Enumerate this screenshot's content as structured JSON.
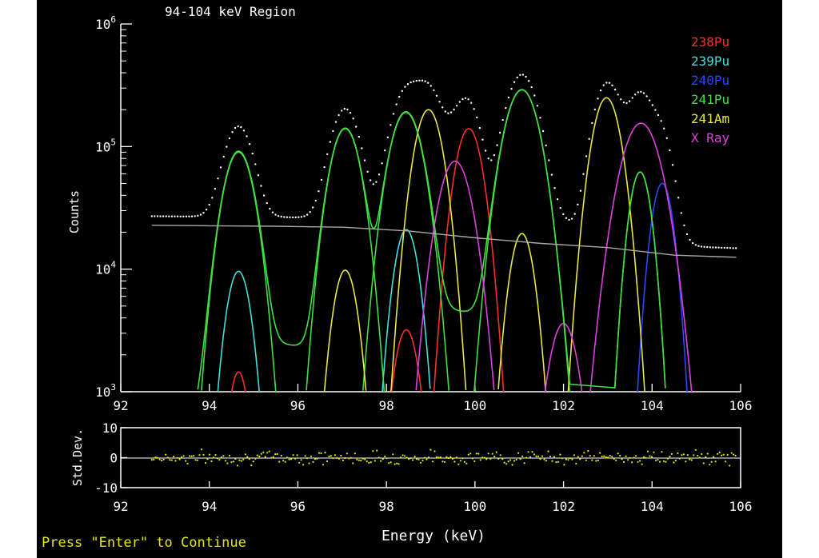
{
  "title": "94-104 keV Region",
  "prompt": "Press \"Enter\" to Continue",
  "colors": {
    "background": "#000000",
    "axis": "#ffffff",
    "prompt": "#e6e600",
    "baseline": "#a8a8a8",
    "data_points": "#ffffff",
    "residuals": "#e6e600"
  },
  "chart_data": [
    {
      "type": "line",
      "title": "94-104 keV Region",
      "xlabel": "Energy (keV)",
      "ylabel": "Counts",
      "yscale": "log",
      "xlim": [
        92,
        106
      ],
      "ylim": [
        1000,
        1000000
      ],
      "x_ticks": [
        "92",
        "94",
        "96",
        "98",
        "100",
        "102",
        "104",
        "106"
      ],
      "y_ticks": [
        {
          "base": "10",
          "exp": "3"
        },
        {
          "base": "10",
          "exp": "4"
        },
        {
          "base": "10",
          "exp": "5"
        },
        {
          "base": "10",
          "exp": "6"
        }
      ],
      "legend_position": "top-right",
      "legend": [
        {
          "label": "238Pu",
          "color": "#ff2b2b"
        },
        {
          "label": "239Pu",
          "color": "#40e0e0"
        },
        {
          "label": "240Pu",
          "color": "#2848ff"
        },
        {
          "label": "241Pu",
          "color": "#40e040"
        },
        {
          "label": "241Am",
          "color": "#e8e840"
        },
        {
          "label": "X Ray",
          "color": "#e040e0"
        }
      ],
      "series": [
        {
          "name": "238Pu",
          "color": "#ff2b2b",
          "peaks": [
            {
              "center": 94.66,
              "height": 1450,
              "width": 0.18
            },
            {
              "center": 98.45,
              "height": 3200,
              "width": 0.22
            },
            {
              "center": 99.86,
              "height": 140000,
              "width": 0.25
            }
          ]
        },
        {
          "name": "239Pu",
          "color": "#40e0e0",
          "peaks": [
            {
              "center": 94.66,
              "height": 9600,
              "width": 0.22
            },
            {
              "center": 98.45,
              "height": 21000,
              "width": 0.22
            }
          ]
        },
        {
          "name": "240Pu",
          "color": "#2848ff",
          "peaks": [
            {
              "center": 104.23,
              "height": 50000,
              "width": 0.2
            }
          ]
        },
        {
          "name": "241Pu",
          "color": "#40e040",
          "peaks": [
            {
              "center": 94.66,
              "height": 90000,
              "width": 0.28
            },
            {
              "center": 97.07,
              "height": 140000,
              "width": 0.28
            },
            {
              "center": 98.44,
              "height": 190000,
              "width": 0.3
            },
            {
              "center": 101.06,
              "height": 290000,
              "width": 0.32
            },
            {
              "center": 103.73,
              "height": 62000,
              "width": 0.2
            }
          ]
        },
        {
          "name": "241Am",
          "color": "#e8e840",
          "peaks": [
            {
              "center": 97.07,
              "height": 9800,
              "width": 0.22
            },
            {
              "center": 98.95,
              "height": 200000,
              "width": 0.26
            },
            {
              "center": 101.06,
              "height": 19500,
              "width": 0.22
            },
            {
              "center": 102.97,
              "height": 250000,
              "width": 0.26
            }
          ]
        },
        {
          "name": "X Ray",
          "color": "#e040e0",
          "peaks": [
            {
              "center": 99.55,
              "height": 76000,
              "width": 0.3
            },
            {
              "center": 102.0,
              "height": 3600,
              "width": 0.26
            },
            {
              "center": 103.75,
              "height": 155000,
              "width": 0.36
            }
          ]
        }
      ],
      "baseline": {
        "x": [
          92.7,
          94,
          95.5,
          97,
          98.5,
          100,
          101.5,
          103,
          104.5,
          105.9
        ],
        "y": [
          22800,
          22600,
          22400,
          22000,
          20500,
          18000,
          16200,
          15000,
          13000,
          12500
        ]
      }
    },
    {
      "type": "scatter",
      "ylabel": "Std.Dev.",
      "xlabel": "Energy (keV)",
      "xlim": [
        92,
        106
      ],
      "ylim": [
        -10,
        10
      ],
      "x_ticks": [
        "92",
        "94",
        "96",
        "98",
        "100",
        "102",
        "104",
        "106"
      ],
      "y_ticks": [
        "10",
        "0",
        "-10"
      ]
    }
  ]
}
